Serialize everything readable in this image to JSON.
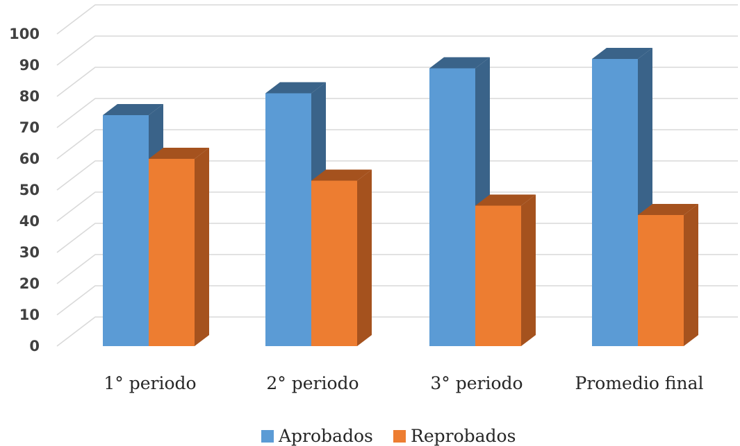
{
  "chart_data": {
    "type": "bar",
    "title": "",
    "xlabel": "",
    "ylabel": "",
    "categories": [
      "1° periodo",
      "2° periodo",
      "3° periodo",
      "Promedio final"
    ],
    "series": [
      {
        "name": "Aprobados",
        "values": [
          74,
          81,
          89,
          92
        ],
        "color": "#5B9BD5",
        "side_color": "#3A6389"
      },
      {
        "name": "Reprobados",
        "values": [
          60,
          53,
          45,
          42
        ],
        "color": "#ED7D31",
        "side_color": "#A5521E"
      }
    ],
    "ylim": [
      0,
      100
    ],
    "yticks": [
      0,
      10,
      20,
      30,
      40,
      50,
      60,
      70,
      80,
      90,
      100
    ],
    "grid": true,
    "legend_position": "bottom",
    "style": "3d-clustered-column"
  }
}
